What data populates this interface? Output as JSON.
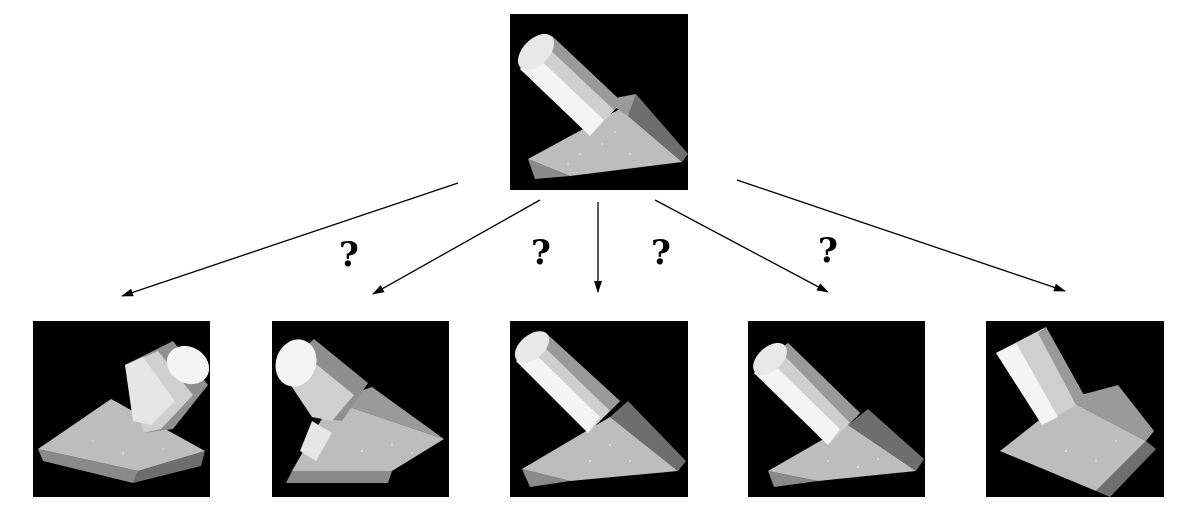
{
  "diagram": {
    "question_marks": [
      {
        "text": "?"
      },
      {
        "text": "?"
      },
      {
        "text": "?"
      },
      {
        "text": "?"
      }
    ],
    "colors": {
      "background": "#ffffff",
      "panel": "#000000",
      "cylinder_light": "#f4f4f4",
      "cylinder_mid": "#cfcfcf",
      "cylinder_dark": "#8f8f8f",
      "prism_top": "#bdbdbd",
      "prism_side": "#9a9a9a",
      "prism_dark": "#6e6e6e"
    },
    "panels": [
      {
        "role": "target",
        "object": "cylinder-on-prism"
      },
      {
        "role": "candidate",
        "object": "cylinder-on-prism"
      },
      {
        "role": "candidate",
        "object": "cylinder-on-prism"
      },
      {
        "role": "candidate",
        "object": "cylinder-on-prism"
      },
      {
        "role": "candidate",
        "object": "cylinder-on-prism"
      },
      {
        "role": "candidate",
        "object": "cylinder-on-prism"
      }
    ]
  }
}
